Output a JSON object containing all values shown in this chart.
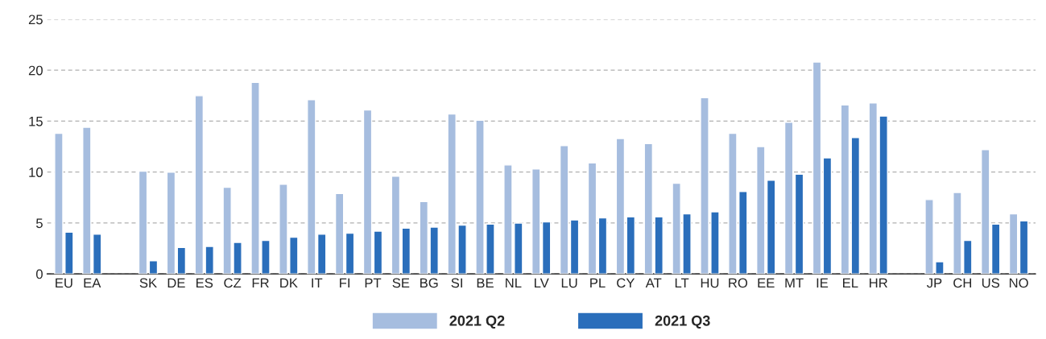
{
  "chart_data": {
    "type": "bar",
    "categories": [
      "EU",
      "EA",
      null,
      "SK",
      "DE",
      "ES",
      "CZ",
      "FR",
      "DK",
      "IT",
      "FI",
      "PT",
      "SE",
      "BG",
      "SI",
      "BE",
      "NL",
      "LV",
      "LU",
      "PL",
      "CY",
      "AT",
      "LT",
      "HU",
      "RO",
      "EE",
      "MT",
      "IE",
      "EL",
      "HR",
      null,
      "JP",
      "CH",
      "US",
      "NO"
    ],
    "series": [
      {
        "name": "2021 Q2",
        "color": "#a6bddf",
        "values": [
          13.8,
          14.4,
          null,
          10.1,
          10.0,
          17.5,
          8.5,
          18.8,
          8.8,
          17.1,
          7.9,
          16.1,
          9.6,
          7.1,
          15.7,
          15.1,
          10.7,
          10.3,
          12.6,
          10.9,
          13.3,
          12.8,
          8.9,
          17.3,
          13.8,
          12.5,
          14.9,
          20.8,
          16.6,
          16.8,
          null,
          7.3,
          8.0,
          12.2,
          5.9
        ]
      },
      {
        "name": "2021 Q3",
        "color": "#2a6ebb",
        "values": [
          4.1,
          3.9,
          null,
          1.3,
          2.6,
          2.7,
          3.1,
          3.3,
          3.6,
          3.9,
          4.0,
          4.2,
          4.5,
          4.6,
          4.8,
          4.9,
          5.0,
          5.1,
          5.3,
          5.5,
          5.6,
          5.6,
          5.9,
          6.1,
          8.1,
          9.2,
          9.8,
          11.4,
          13.4,
          15.5,
          null,
          1.2,
          3.3,
          4.9,
          5.2
        ]
      }
    ],
    "ylim": [
      0,
      25
    ],
    "yticks": [
      0,
      5,
      10,
      15,
      20,
      25
    ],
    "grid": "y",
    "legend": "bottom"
  }
}
